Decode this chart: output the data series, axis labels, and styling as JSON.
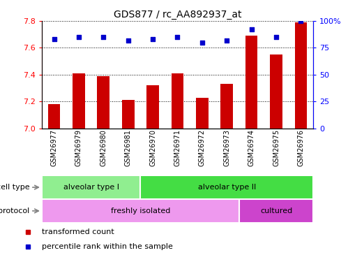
{
  "title": "GDS877 / rc_AA892937_at",
  "samples": [
    "GSM26977",
    "GSM26979",
    "GSM26980",
    "GSM26981",
    "GSM26970",
    "GSM26971",
    "GSM26972",
    "GSM26973",
    "GSM26974",
    "GSM26975",
    "GSM26976"
  ],
  "bar_values": [
    7.18,
    7.41,
    7.39,
    7.21,
    7.32,
    7.41,
    7.23,
    7.33,
    7.69,
    7.55,
    7.79
  ],
  "scatter_pct": [
    83,
    85,
    85,
    82,
    83,
    85,
    80,
    82,
    92,
    85,
    100
  ],
  "ylim_left": [
    7.0,
    7.8
  ],
  "ylim_right": [
    0,
    100
  ],
  "yticks_left": [
    7.0,
    7.2,
    7.4,
    7.6,
    7.8
  ],
  "yticks_right": [
    0,
    25,
    50,
    75,
    100
  ],
  "bar_color": "#cc0000",
  "scatter_color": "#0000cc",
  "cell_type_groups": [
    {
      "label": "alveolar type I",
      "start": 0,
      "end": 3,
      "color": "#90ee90"
    },
    {
      "label": "alveolar type II",
      "start": 4,
      "end": 10,
      "color": "#44dd44"
    }
  ],
  "protocol_groups": [
    {
      "label": "freshly isolated",
      "start": 0,
      "end": 7,
      "color": "#ee99ee"
    },
    {
      "label": "cultured",
      "start": 8,
      "end": 10,
      "color": "#cc44cc"
    }
  ],
  "cell_type_label": "cell type",
  "protocol_label": "protocol",
  "legend_items": [
    {
      "label": "transformed count",
      "color": "#cc0000"
    },
    {
      "label": "percentile rank within the sample",
      "color": "#0000cc"
    }
  ]
}
